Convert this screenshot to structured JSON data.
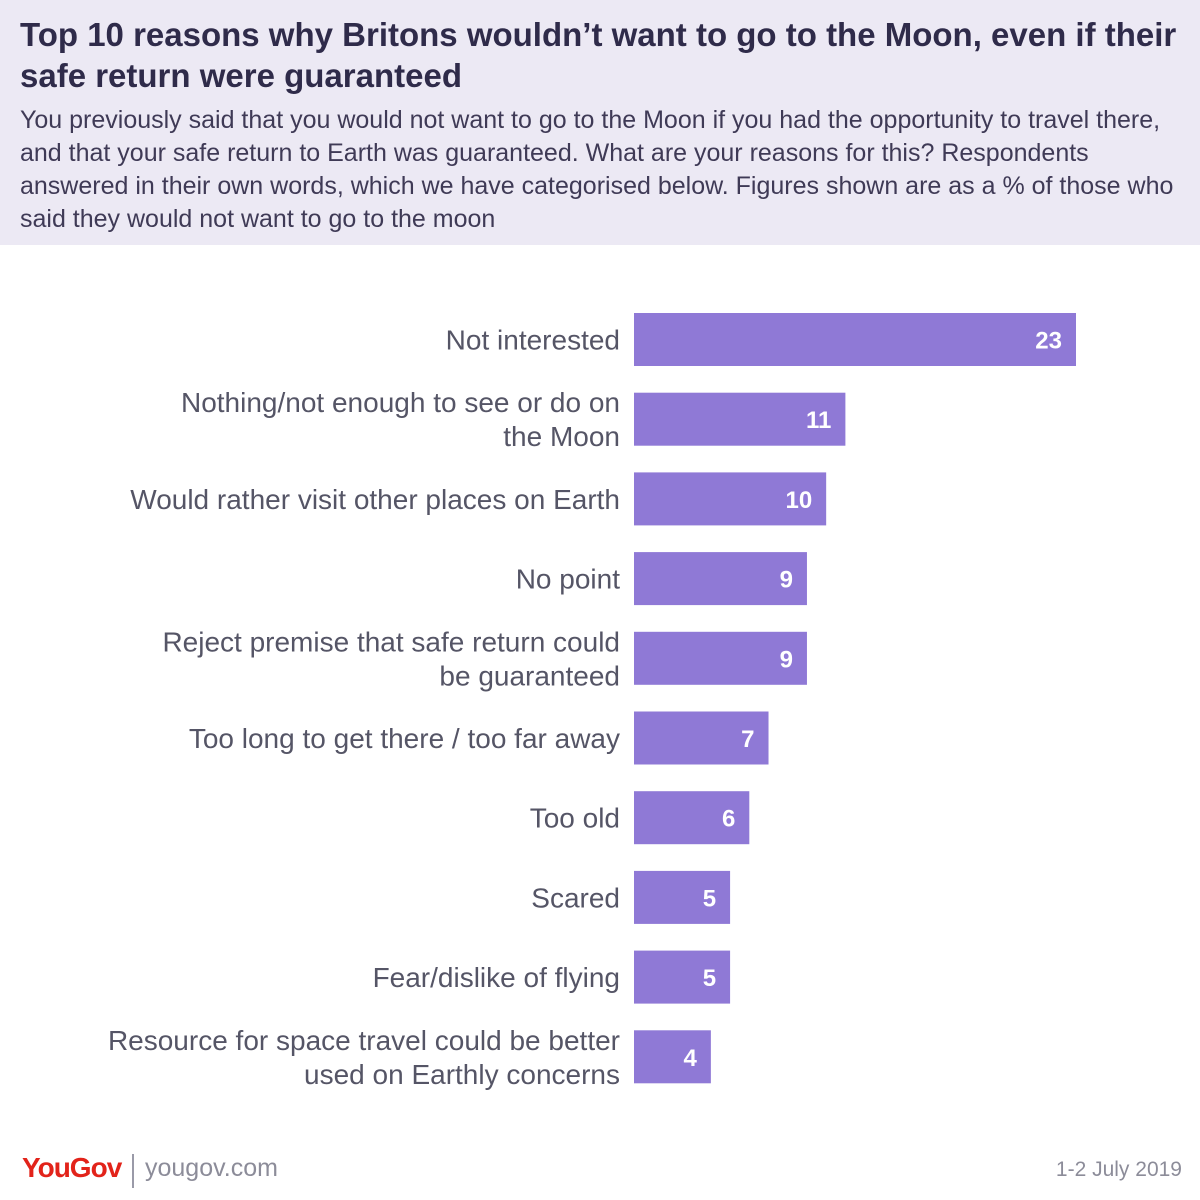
{
  "title": "Top 10 reasons why Britons wouldn’t want to go to the Moon, even if their safe return were guaranteed",
  "subtitle": "You previously said that you would not want to go to the Moon if you had the opportunity to travel there, and that your safe return to Earth was guaranteed. What are your reasons for this? Respondents answered in their own words, which we have categorised below. Figures shown are as a % of those who said they would not want to go to the moon",
  "footer": {
    "logo": "YouGov",
    "site": "yougov.com",
    "date": "1-2 July 2019"
  },
  "colors": {
    "bar": "#8f79d6",
    "header_bg": "#ece9f4",
    "logo": "#e2231a"
  },
  "chart_data": {
    "type": "bar",
    "orientation": "horizontal",
    "categories": [
      [
        "Not interested"
      ],
      [
        "Nothing/not enough to see or do on",
        "the Moon"
      ],
      [
        "Would rather visit other places on Earth"
      ],
      [
        "No point"
      ],
      [
        "Reject premise that safe return could",
        "be guaranteed"
      ],
      [
        "Too long to get there / too far away"
      ],
      [
        "Too old"
      ],
      [
        "Scared"
      ],
      [
        "Fear/dislike of flying"
      ],
      [
        "Resource for space travel could be better",
        "used on Earthly concerns"
      ]
    ],
    "values": [
      23,
      11,
      10,
      9,
      9,
      7,
      6,
      5,
      5,
      4
    ],
    "xlim": [
      0,
      23
    ],
    "grid": false,
    "legend": "none"
  }
}
